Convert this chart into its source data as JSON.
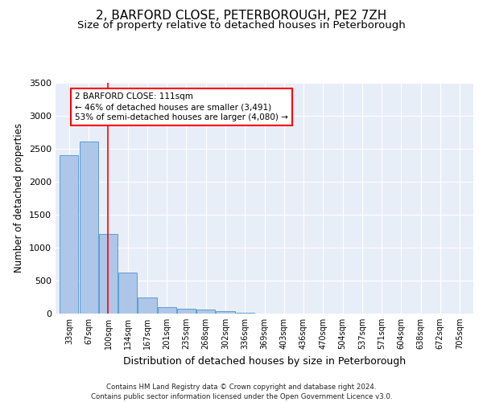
{
  "title1": "2, BARFORD CLOSE, PETERBOROUGH, PE2 7ZH",
  "title2": "Size of property relative to detached houses in Peterborough",
  "xlabel": "Distribution of detached houses by size in Peterborough",
  "ylabel": "Number of detached properties",
  "footer": "Contains HM Land Registry data © Crown copyright and database right 2024.\nContains public sector information licensed under the Open Government Licence v3.0.",
  "bar_labels": [
    "33sqm",
    "67sqm",
    "100sqm",
    "134sqm",
    "167sqm",
    "201sqm",
    "235sqm",
    "268sqm",
    "302sqm",
    "336sqm",
    "369sqm",
    "403sqm",
    "436sqm",
    "470sqm",
    "504sqm",
    "537sqm",
    "571sqm",
    "604sqm",
    "638sqm",
    "672sqm",
    "705sqm"
  ],
  "bar_values": [
    2400,
    2600,
    1200,
    620,
    240,
    100,
    70,
    60,
    40,
    10,
    5,
    5,
    0,
    0,
    0,
    0,
    0,
    0,
    0,
    0,
    0
  ],
  "bar_color": "#aec6e8",
  "bar_edge_color": "#5a9fd4",
  "red_line_x": 2.0,
  "annotation_text": "2 BARFORD CLOSE: 111sqm\n← 46% of detached houses are smaller (3,491)\n53% of semi-detached houses are larger (4,080) →",
  "annotation_box_color": "white",
  "annotation_border_color": "red",
  "ylim": [
    0,
    3500
  ],
  "yticks": [
    0,
    500,
    1000,
    1500,
    2000,
    2500,
    3000,
    3500
  ],
  "background_color": "#e8eef8",
  "grid_color": "white",
  "title1_fontsize": 11,
  "title2_fontsize": 9.5,
  "xlabel_fontsize": 9,
  "ylabel_fontsize": 8.5
}
